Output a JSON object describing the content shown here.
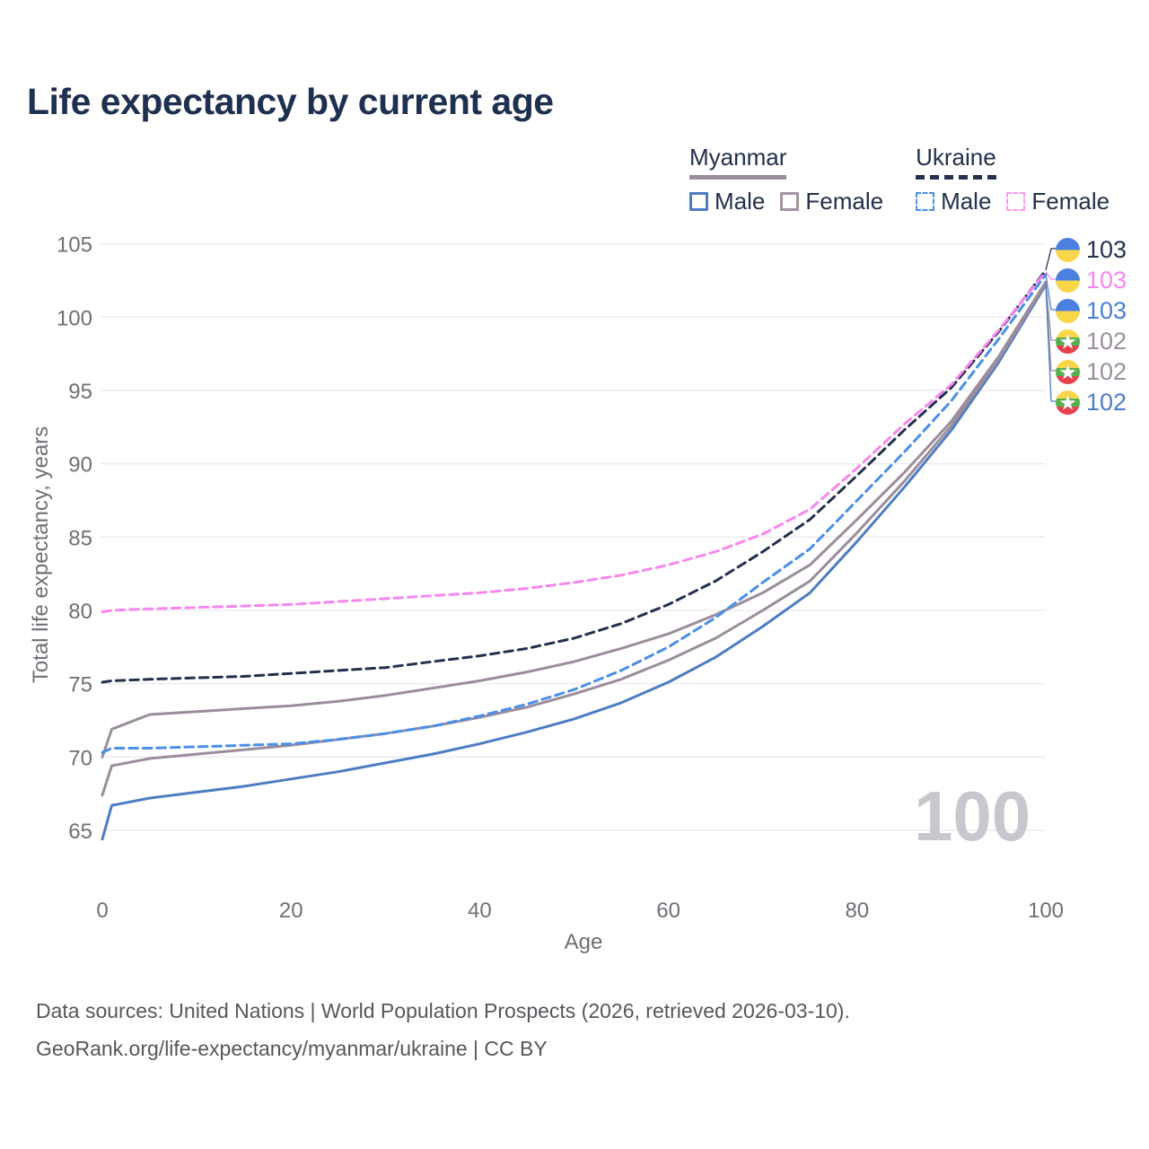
{
  "title": "Life expectancy by current age",
  "watermark": "100",
  "legend": {
    "groups": [
      {
        "name": "Myanmar",
        "line_style": "solid",
        "underline_color": "#9b8d9b",
        "items": [
          {
            "label": "Male",
            "color": "#4d7dc2",
            "dashed": false
          },
          {
            "label": "Female",
            "color": "#a396a3",
            "dashed": false
          }
        ]
      },
      {
        "name": "Ukraine",
        "line_style": "dashed",
        "underline_color": "#24314d",
        "items": [
          {
            "label": "Male",
            "color": "#4a8fe8",
            "dashed": true
          },
          {
            "label": "Female",
            "color": "#f99bf2",
            "dashed": true
          }
        ]
      }
    ]
  },
  "y_axis": {
    "label": "Total life expectancy, years",
    "ticks": [
      65,
      70,
      75,
      80,
      85,
      90,
      95,
      100,
      105
    ]
  },
  "x_axis": {
    "label": "Age",
    "ticks": [
      0,
      20,
      40,
      60,
      80,
      100
    ]
  },
  "end_labels": [
    {
      "value": "103",
      "flag": "ukraine",
      "color": "#24314d",
      "series_index": 0
    },
    {
      "value": "103",
      "flag": "ukraine",
      "color": "#f787ef",
      "series_index": 1
    },
    {
      "value": "103",
      "flag": "ukraine",
      "color": "#477fd6",
      "series_index": 2
    },
    {
      "value": "102",
      "flag": "myanmar",
      "color": "#9b8f9d",
      "series_index": 3
    },
    {
      "value": "102",
      "flag": "myanmar",
      "color": "#9b8f9d",
      "series_index": 4
    },
    {
      "value": "102",
      "flag": "myanmar",
      "color": "#4d7dc2",
      "series_index": 5
    }
  ],
  "footer": {
    "line1": "Data sources: United Nations | World Population Prospects (2026, retrieved 2026-03-10).",
    "line2": "GeoRank.org/life-expectancy/myanmar/ukraine | CC BY"
  },
  "chart_data": {
    "type": "line",
    "xlabel": "Age",
    "ylabel": "Total life expectancy, years",
    "xlim": [
      0,
      100
    ],
    "ylim": [
      63,
      106
    ],
    "grid": "horizontal",
    "x": [
      0,
      1,
      5,
      10,
      15,
      20,
      25,
      30,
      35,
      40,
      45,
      50,
      55,
      60,
      65,
      70,
      75,
      80,
      85,
      90,
      95,
      100
    ],
    "series": [
      {
        "name": "Ukraine — Total",
        "country": "Ukraine",
        "sex": "total",
        "color": "#24314d",
        "dashed": true,
        "end_label": 103,
        "values": [
          75.1,
          75.2,
          75.3,
          75.4,
          75.5,
          75.7,
          75.9,
          76.1,
          76.5,
          76.9,
          77.4,
          78.1,
          79.1,
          80.4,
          82.0,
          84.0,
          86.2,
          89.2,
          92.3,
          95.2,
          99.0,
          103.2
        ]
      },
      {
        "name": "Ukraine — Female",
        "country": "Ukraine",
        "sex": "female",
        "color": "#f787ef",
        "dashed": true,
        "end_label": 103,
        "values": [
          79.9,
          80.0,
          80.1,
          80.2,
          80.3,
          80.4,
          80.6,
          80.8,
          81.0,
          81.2,
          81.5,
          81.9,
          82.4,
          83.1,
          84.0,
          85.2,
          86.9,
          89.7,
          92.7,
          95.4,
          99.1,
          103.1
        ]
      },
      {
        "name": "Ukraine — Male",
        "country": "Ukraine",
        "sex": "male",
        "color": "#4a8fe8",
        "dashed": true,
        "end_label": 103,
        "values": [
          70.3,
          70.6,
          70.6,
          70.7,
          70.8,
          70.9,
          71.2,
          71.6,
          72.1,
          72.8,
          73.6,
          74.6,
          75.9,
          77.5,
          79.5,
          81.9,
          84.2,
          87.5,
          90.8,
          94.3,
          98.5,
          102.9
        ]
      },
      {
        "name": "Myanmar — Female",
        "country": "Myanmar",
        "sex": "female",
        "color": "#9b8d9b",
        "dashed": false,
        "end_label": 102,
        "values": [
          70.0,
          71.9,
          72.9,
          73.1,
          73.3,
          73.5,
          73.8,
          74.2,
          74.7,
          75.2,
          75.8,
          76.5,
          77.4,
          78.4,
          79.7,
          81.2,
          83.1,
          86.2,
          89.4,
          92.9,
          97.3,
          102.4
        ]
      },
      {
        "name": "Myanmar — Total",
        "country": "Myanmar",
        "sex": "total",
        "color": "#9b8d9b",
        "dashed": false,
        "end_label": 102,
        "values": [
          67.4,
          69.4,
          69.9,
          70.2,
          70.5,
          70.8,
          71.2,
          71.6,
          72.1,
          72.7,
          73.4,
          74.3,
          75.3,
          76.6,
          78.1,
          80.0,
          82.0,
          85.3,
          88.8,
          92.6,
          97.1,
          102.3
        ]
      },
      {
        "name": "Myanmar — Male",
        "country": "Myanmar",
        "sex": "male",
        "color": "#4d7dc2",
        "dashed": false,
        "end_label": 102,
        "values": [
          64.4,
          66.7,
          67.2,
          67.6,
          68.0,
          68.5,
          69.0,
          69.6,
          70.2,
          70.9,
          71.7,
          72.6,
          73.7,
          75.1,
          76.8,
          78.9,
          81.2,
          84.7,
          88.4,
          92.3,
          96.9,
          102.2
        ]
      }
    ]
  }
}
